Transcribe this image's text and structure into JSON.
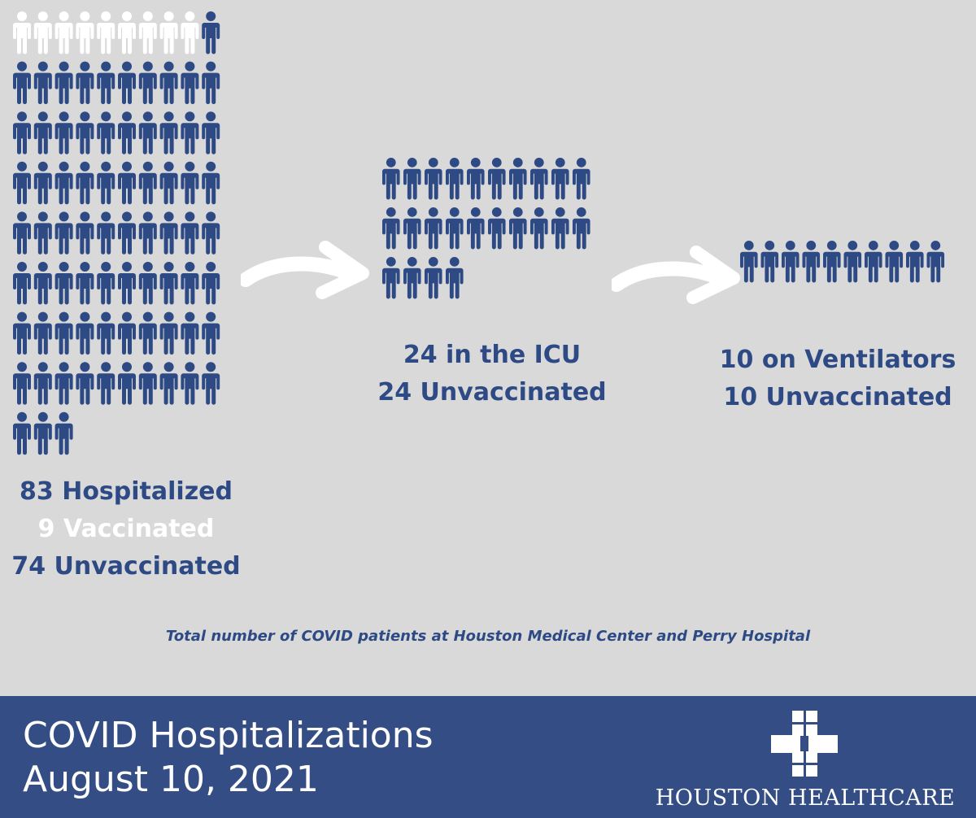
{
  "colors": {
    "background": "#d9d9d9",
    "unvaccinated": "#2e4a85",
    "vaccinated": "#ffffff",
    "banner": "#344e85",
    "text_accent": "#2e4a85"
  },
  "icons": {
    "person": "person-icon",
    "arrow": "curved-arrow-icon",
    "logo_mark": "medical-cross-icon"
  },
  "hospitalized": {
    "total": 83,
    "vaccinated": 9,
    "unvaccinated": 74,
    "line1": "83 Hospitalized",
    "line2": "9 Vaccinated",
    "line3": "74 Unvaccinated"
  },
  "icu": {
    "total": 24,
    "unvaccinated": 24,
    "line1": "24 in the ICU",
    "line2": "24 Unvaccinated"
  },
  "ventilators": {
    "total": 10,
    "unvaccinated": 10,
    "line1": "10 on Ventilators",
    "line2": "10 Unvaccinated"
  },
  "footnote": "Total number of COVID patients at Houston Medical Center and Perry Hospital",
  "banner": {
    "title_line1": "COVID Hospitalizations",
    "title_line2": "August 10, 2021",
    "logo_text": "HOUSTON HEALTHCARE"
  }
}
